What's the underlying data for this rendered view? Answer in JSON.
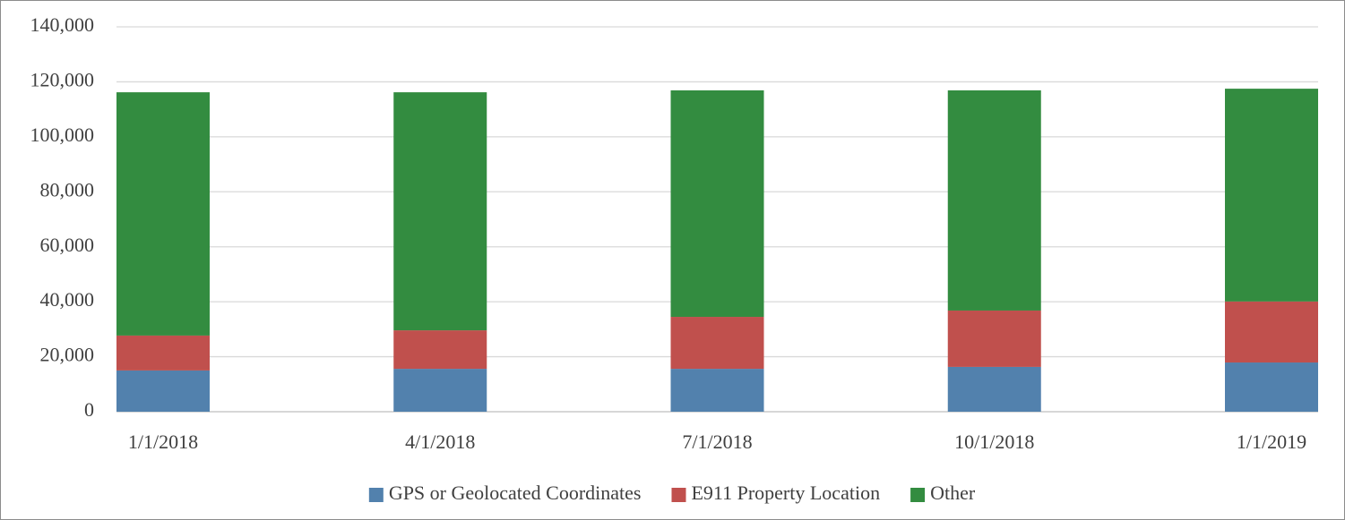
{
  "chart_data": {
    "type": "stacked_bar",
    "categories": [
      "1/1/2018",
      "4/1/2018",
      "7/1/2018",
      "10/1/2018",
      "1/1/2019"
    ],
    "series": [
      {
        "name": "GPS or Geolocated Coordinates",
        "color": "#5281ad",
        "values": [
          15000,
          15600,
          15600,
          16300,
          17900
        ]
      },
      {
        "name": "E911 Property Location",
        "color": "#c0504d",
        "values": [
          12700,
          14000,
          18900,
          20500,
          22200
        ]
      },
      {
        "name": "Other",
        "color": "#338c40",
        "values": [
          88500,
          86600,
          82400,
          80100,
          77400
        ]
      }
    ],
    "ylim": [
      0,
      140000
    ],
    "yticks": [
      0,
      {
        "value": 20000,
        "label": "20,000"
      },
      {
        "value": 40000,
        "label": "40,000"
      },
      {
        "value": 60000,
        "label": "60,000"
      },
      {
        "value": 80000,
        "label": "80,000"
      },
      {
        "value": 100000,
        "label": "100,000"
      },
      {
        "value": 120000,
        "label": "120,000"
      },
      {
        "value": 140000,
        "label": "140,000"
      }
    ],
    "grid": true,
    "legend": "bottom"
  }
}
